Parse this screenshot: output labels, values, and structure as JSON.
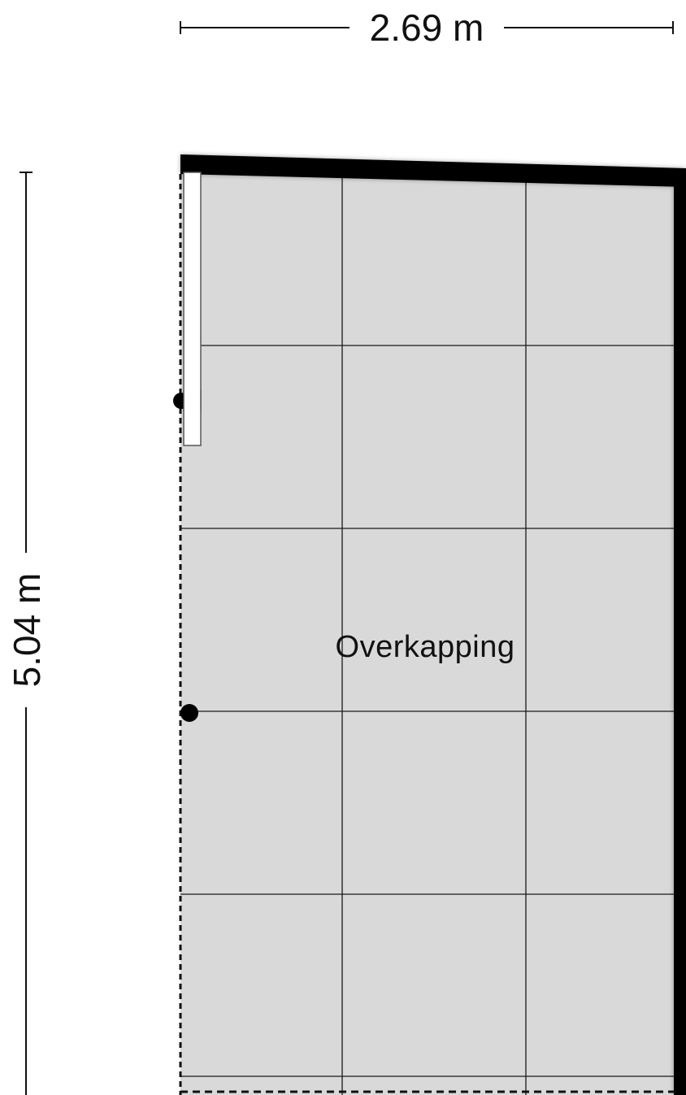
{
  "dimensions": {
    "width_label": "2.69 m",
    "height_label": "5.04 m"
  },
  "room": {
    "name": "Overkapping"
  },
  "colors": {
    "floor": "#d9d9d9",
    "wall": "#000000",
    "grid": "#1a1a1a",
    "background": "#ffffff"
  }
}
